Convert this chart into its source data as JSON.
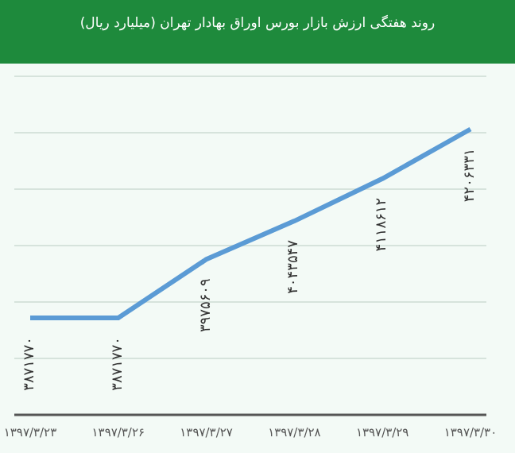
{
  "chart_data": {
    "type": "line",
    "title": "روند هفتگی ارزش بازار بورس اوراق بهادار تهران (میلیارد ریال)",
    "categories": [
      "۱۳۹۷/۳/۲۳",
      "۱۳۹۷/۳/۲۶",
      "۱۳۹۷/۳/۲۷",
      "۱۳۹۷/۳/۲۸",
      "۱۳۹۷/۳/۲۹",
      "۱۳۹۷/۳/۳۰"
    ],
    "series": [
      {
        "color": "#5b9bd5",
        "values": [
          3871770,
          3871770,
          3975609,
          4043547,
          4118612,
          4206331
        ],
        "value_labels": [
          "۳۸۷۱۷۷۰",
          "۳۸۷۱۷۷۰",
          "۳۹۷۵۶۰۹",
          "۴۰۴۳۵۴۷",
          "۴۱۱۸۶۱۲",
          "۴۲۰۶۳۳۱"
        ]
      }
    ],
    "ylim": [
      3700000,
      4300000
    ],
    "yticks": [
      {
        "value": 3800000,
        "label": null
      },
      {
        "value": 3900000,
        "label": null
      },
      {
        "value": 4000000,
        "label": null
      },
      {
        "value": 4100000,
        "label": null
      },
      {
        "value": 4200000,
        "label": null
      }
    ],
    "grid": "y",
    "tick_labels": "x",
    "marker": "none",
    "line_style": "solid",
    "legend": false
  }
}
